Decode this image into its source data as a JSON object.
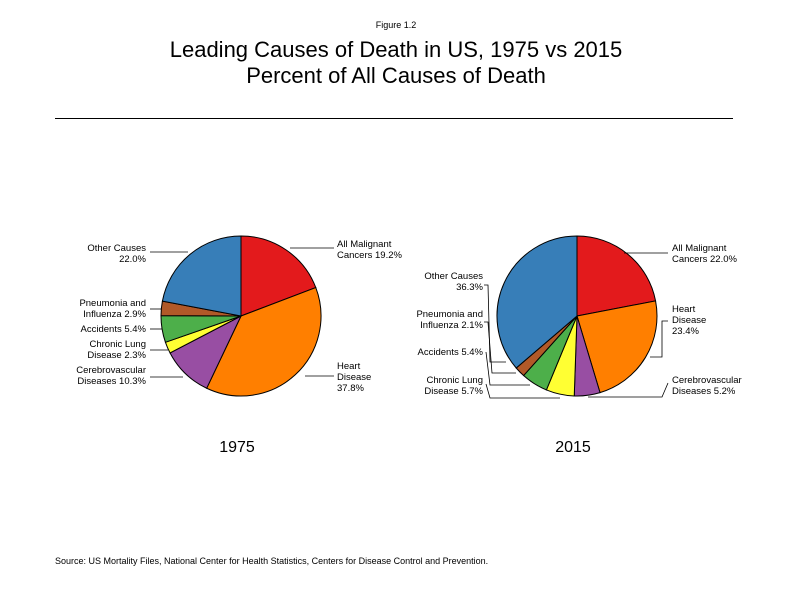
{
  "figure_label": "Figure 1.2",
  "title_line1": "Leading Causes of Death in US, 1975 vs 2015",
  "title_line2": "Percent of All Causes of Death",
  "source": "Source: US Mortality Files, National Center for Health Statistics, Centers for Disease Control and Prevention.",
  "chart_data": [
    {
      "type": "pie",
      "title": "1975",
      "unit": "%",
      "slices": [
        {
          "key": "malignant",
          "value": 19.2,
          "color": "#e31a1c",
          "label_lines": [
            "All Malignant",
            "Cancers 19.2%"
          ]
        },
        {
          "key": "heart",
          "value": 37.8,
          "color": "#ff7f00",
          "label_lines": [
            "Heart",
            "Disease",
            "37.8%"
          ]
        },
        {
          "key": "cerebro",
          "value": 10.3,
          "color": "#984ea3",
          "label_lines": [
            "Cerebrovascular",
            "Diseases 10.3%"
          ]
        },
        {
          "key": "lung",
          "value": 2.3,
          "color": "#ffff33",
          "label_lines": [
            "Chronic Lung",
            "Disease 2.3%"
          ]
        },
        {
          "key": "accidents",
          "value": 5.4,
          "color": "#4daf4a",
          "label_lines": [
            "Accidents 5.4%"
          ]
        },
        {
          "key": "pneumonia",
          "value": 2.9,
          "color": "#b15928",
          "label_lines": [
            "Pneumonia and",
            "Influenza 2.9%"
          ]
        },
        {
          "key": "other",
          "value": 22.0,
          "color": "#377eb8",
          "label_lines": [
            "Other Causes",
            "22.0%"
          ]
        }
      ]
    },
    {
      "type": "pie",
      "title": "2015",
      "unit": "%",
      "slices": [
        {
          "key": "malignant",
          "value": 22.0,
          "color": "#e31a1c",
          "label_lines": [
            "All Malignant",
            "Cancers 22.0%"
          ]
        },
        {
          "key": "heart",
          "value": 23.4,
          "color": "#ff7f00",
          "label_lines": [
            "Heart",
            "Disease",
            "23.4%"
          ]
        },
        {
          "key": "cerebro",
          "value": 5.2,
          "color": "#984ea3",
          "label_lines": [
            "Cerebrovascular",
            "Diseases 5.2%"
          ]
        },
        {
          "key": "lung",
          "value": 5.7,
          "color": "#ffff33",
          "label_lines": [
            "Chronic Lung",
            "Disease 5.7%"
          ]
        },
        {
          "key": "accidents",
          "value": 5.4,
          "color": "#4daf4a",
          "label_lines": [
            "Accidents 5.4%"
          ]
        },
        {
          "key": "pneumonia",
          "value": 2.1,
          "color": "#b15928",
          "label_lines": [
            "Pneumonia and",
            "Influenza 2.1%"
          ]
        },
        {
          "key": "other",
          "value": 36.3,
          "color": "#377eb8",
          "label_lines": [
            "Other Causes",
            "36.3%"
          ]
        }
      ]
    }
  ]
}
